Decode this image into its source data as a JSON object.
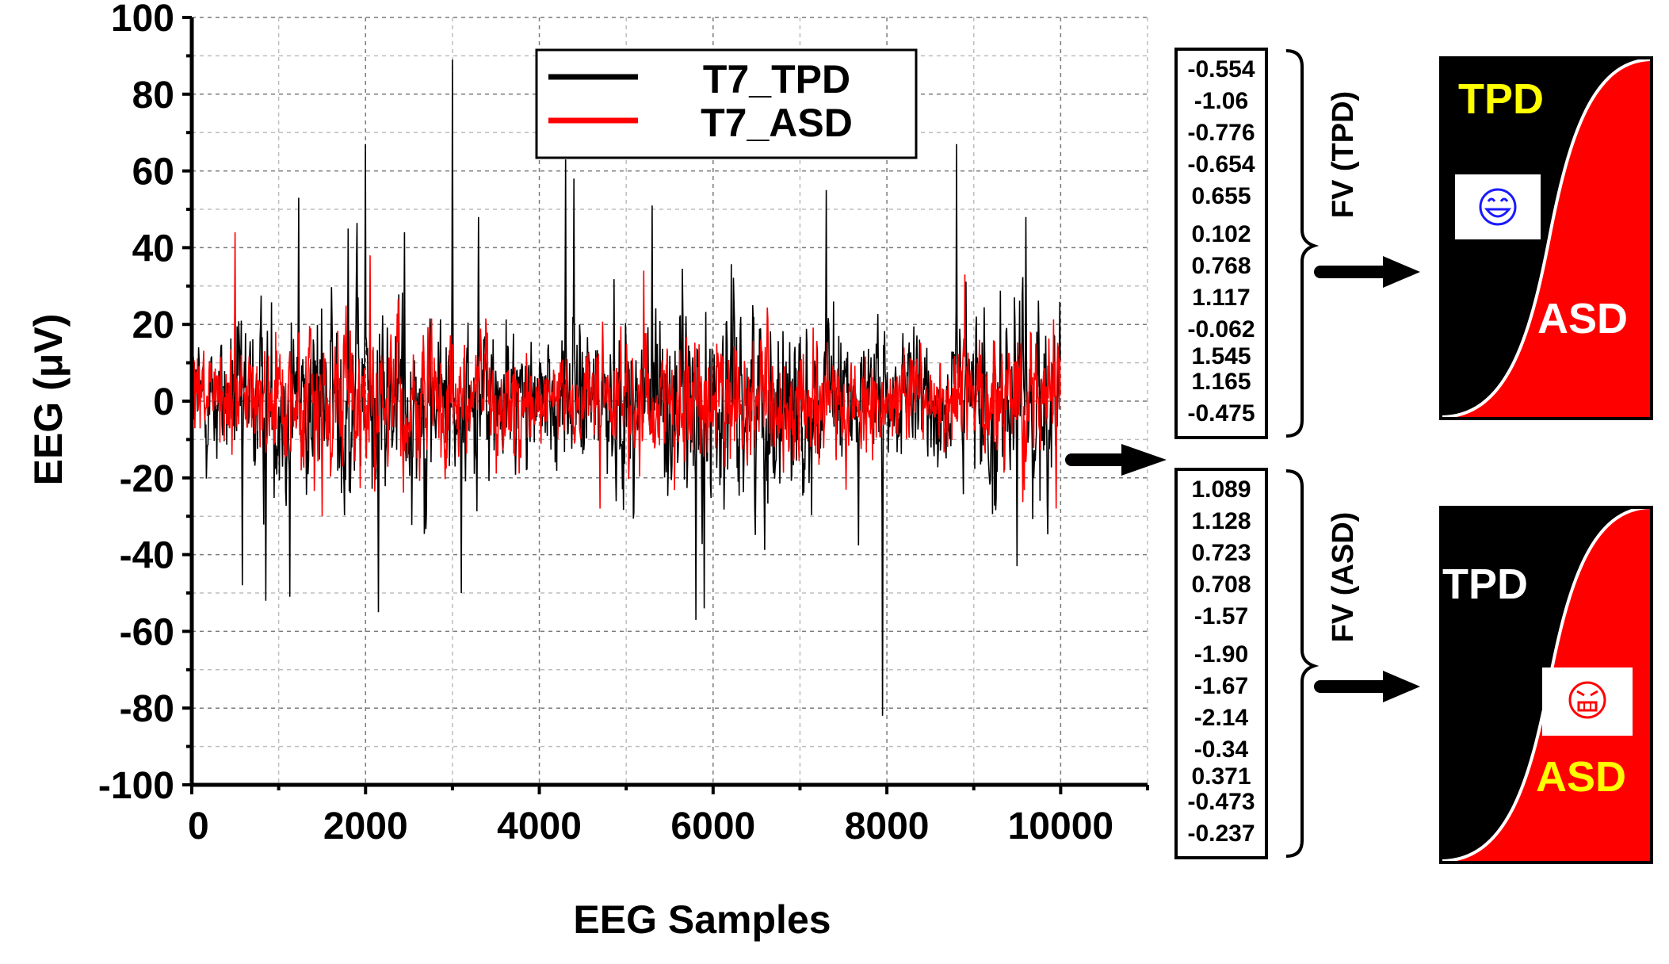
{
  "chart_data": {
    "type": "line",
    "title": "",
    "xlabel": "EEG Samples",
    "ylabel": "EEG (μV)",
    "xlim": [
      0,
      11000
    ],
    "ylim": [
      -100,
      100
    ],
    "x_ticks": [
      "0",
      "2000",
      "4000",
      "6000",
      "8000",
      "10000"
    ],
    "x_tick_values": [
      0,
      2000,
      4000,
      6000,
      8000,
      10000
    ],
    "y_ticks": [
      "100",
      "80",
      "60",
      "40",
      "20",
      "0",
      "-20",
      "-40",
      "-60",
      "-80",
      "-100"
    ],
    "y_tick_values": [
      100,
      80,
      60,
      40,
      20,
      0,
      -20,
      -40,
      -60,
      -80,
      -100
    ],
    "grid": true,
    "legend_position": "top-center",
    "series": [
      {
        "name": "T7_TPD",
        "color": "#000000",
        "n_samples": 10000,
        "approx_range": [
          -82,
          89
        ],
        "peaks": [
          {
            "x": 1230,
            "y": 53
          },
          {
            "x": 1800,
            "y": 45
          },
          {
            "x": 2000,
            "y": 67
          },
          {
            "x": 2450,
            "y": 44
          },
          {
            "x": 3000,
            "y": 89
          },
          {
            "x": 3300,
            "y": 48
          },
          {
            "x": 4300,
            "y": 63
          },
          {
            "x": 4400,
            "y": 58
          },
          {
            "x": 5300,
            "y": 51
          },
          {
            "x": 7300,
            "y": 55
          },
          {
            "x": 8800,
            "y": 67
          },
          {
            "x": 9600,
            "y": 48
          }
        ],
        "troughs": [
          {
            "x": 580,
            "y": -48
          },
          {
            "x": 850,
            "y": -52
          },
          {
            "x": 1130,
            "y": -51
          },
          {
            "x": 2150,
            "y": -55
          },
          {
            "x": 3100,
            "y": -50
          },
          {
            "x": 5800,
            "y": -57
          },
          {
            "x": 5900,
            "y": -54
          },
          {
            "x": 7950,
            "y": -82
          },
          {
            "x": 9500,
            "y": -43
          }
        ]
      },
      {
        "name": "T7_ASD",
        "color": "#ff0000",
        "n_samples": 10000,
        "approx_range": [
          -33,
          44
        ],
        "peaks": [
          {
            "x": 500,
            "y": 44
          },
          {
            "x": 2050,
            "y": 38
          },
          {
            "x": 5200,
            "y": 34
          },
          {
            "x": 8900,
            "y": 33
          }
        ],
        "troughs": [
          {
            "x": 1500,
            "y": -30
          },
          {
            "x": 4700,
            "y": -28
          },
          {
            "x": 9950,
            "y": -28
          }
        ]
      }
    ]
  },
  "feature_vectors": {
    "tpd": {
      "label": "FV (TPD)",
      "values": [
        "-0.554",
        "-1.06",
        "-0.776",
        "-0.654",
        "0.655",
        "0.102",
        "0.768",
        "1.117",
        "-0.062",
        "1.545",
        "1.165",
        "-0.475"
      ]
    },
    "asd": {
      "label": "FV (ASD)",
      "values": [
        "1.089",
        "1.128",
        "0.723",
        "0.708",
        "-1.57",
        "-1.90",
        "-1.67",
        "-2.14",
        "-0.34",
        "0.371",
        "-0.473",
        "-0.237"
      ]
    }
  },
  "classifier_panels": {
    "top": {
      "tpd_label": "TPD",
      "asd_label": "ASD",
      "tpd_color": "#ffff00",
      "asd_color": "#ffffff",
      "emoji": "😄",
      "emoji_color": "#1a1aff"
    },
    "bottom": {
      "tpd_label": "TPD",
      "asd_label": "ASD",
      "tpd_color": "#ffffff",
      "asd_color": "#ffff00",
      "emoji": "😡",
      "emoji_color": "#ff0000"
    }
  }
}
